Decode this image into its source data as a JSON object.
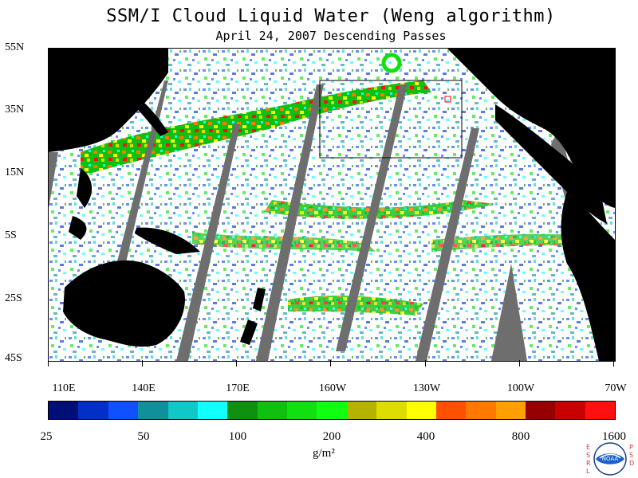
{
  "title": "SSM/I Cloud Liquid Water (Weng algorithm)",
  "subtitle": "April 24, 2007  Descending Passes",
  "axes": {
    "lat_labels": [
      "55N",
      "35N",
      "15N",
      "5S",
      "25S",
      "45S"
    ],
    "lon_labels": [
      "110E",
      "140E",
      "170E",
      "160W",
      "130W",
      "100W",
      "70W"
    ]
  },
  "colorbar": {
    "labels": [
      "25",
      "50",
      "100",
      "200",
      "400",
      "800",
      "1600"
    ],
    "units": "g/m²",
    "colors": [
      "#000f75",
      "#0030c8",
      "#1050ff",
      "#10909a",
      "#10c8c8",
      "#10ffff",
      "#109010",
      "#10c010",
      "#10e010",
      "#10ff10",
      "#b4b400",
      "#dcdc00",
      "#ffff00",
      "#ff5000",
      "#ff7800",
      "#ffa000",
      "#960000",
      "#c80000",
      "#ff1010"
    ]
  },
  "logo": {
    "name": "noaa-logo",
    "text": "NOAA",
    "left_letters": [
      "E",
      "S",
      "R",
      "L"
    ],
    "right_letters": [
      "P",
      "S",
      "D"
    ]
  }
}
